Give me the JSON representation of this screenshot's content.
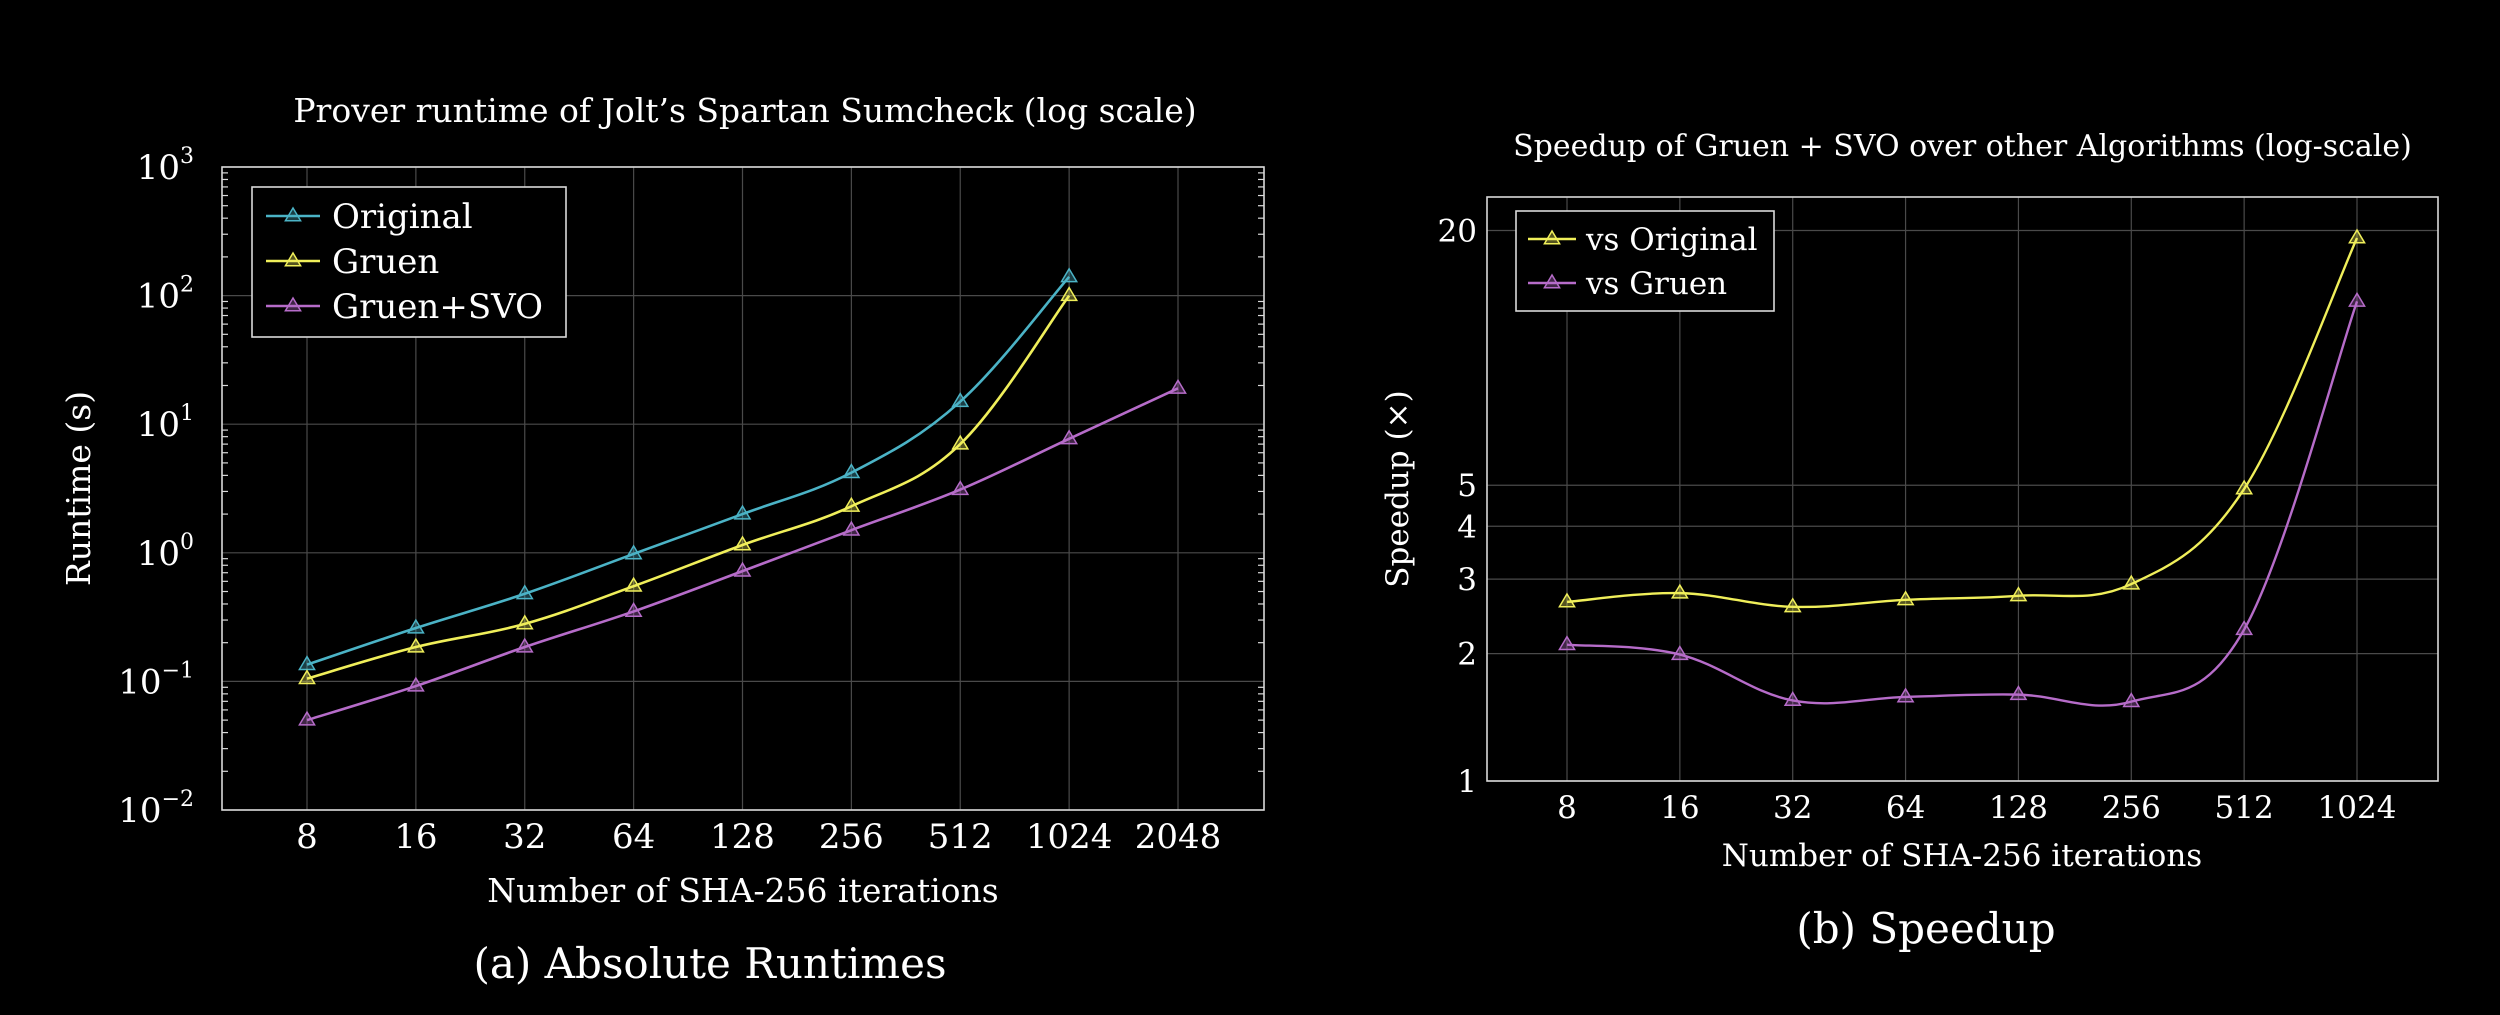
{
  "chart_data": [
    {
      "type": "line",
      "id": "left",
      "title": "Prover runtime of Jolt’s Spartan Sumcheck (log scale)",
      "caption": "(a) Absolute Runtimes",
      "xlabel": "Number of SHA-256 iterations",
      "ylabel": "Runtime (s)",
      "yscale": "log",
      "ylim": [
        0.01,
        1000
      ],
      "categories": [
        "8",
        "16",
        "32",
        "64",
        "128",
        "256",
        "512",
        "1024",
        "2048"
      ],
      "ytick_labels": [
        {
          "base": "10",
          "exp": "−2"
        },
        {
          "base": "10",
          "exp": "−1"
        },
        {
          "base": "10",
          "exp": "0"
        },
        {
          "base": "10",
          "exp": "1"
        },
        {
          "base": "10",
          "exp": "2"
        },
        {
          "base": "10",
          "exp": "3"
        }
      ],
      "legend_position": "top-left",
      "series": [
        {
          "name": "Original",
          "color": "#4bb3c6",
          "values": [
            0.135,
            0.26,
            0.48,
            0.98,
            2.0,
            4.2,
            15,
            140,
            null
          ]
        },
        {
          "name": "Gruen",
          "color": "#f0ef5a",
          "values": [
            0.105,
            0.185,
            0.28,
            0.55,
            1.15,
            2.3,
            7,
            100,
            null
          ]
        },
        {
          "name": "Gruen+SVO",
          "color": "#b66cc9",
          "values": [
            0.05,
            0.092,
            0.185,
            0.35,
            0.72,
            1.5,
            3.1,
            7.7,
            19
          ]
        }
      ]
    },
    {
      "type": "line",
      "id": "right",
      "title": "Speedup of Gruen + SVO over other Algorithms (log-scale)",
      "caption": "(b) Speedup",
      "xlabel": "Number of SHA-256 iterations",
      "ylabel": "Speedup (×)",
      "yscale": "log",
      "ylim": [
        1,
        24
      ],
      "categories": [
        "8",
        "16",
        "32",
        "64",
        "128",
        "256",
        "512",
        "1024"
      ],
      "yticks": [
        1,
        2,
        3,
        4,
        5,
        20
      ],
      "legend_position": "top-left",
      "series": [
        {
          "name": "vs Original",
          "color": "#f0ef5a",
          "values": [
            2.65,
            2.78,
            2.58,
            2.68,
            2.74,
            2.92,
            4.9,
            19.2
          ]
        },
        {
          "name": "vs Gruen",
          "color": "#b66cc9",
          "values": [
            2.1,
            1.99,
            1.55,
            1.58,
            1.6,
            1.54,
            2.28,
            13.6
          ]
        }
      ]
    }
  ]
}
